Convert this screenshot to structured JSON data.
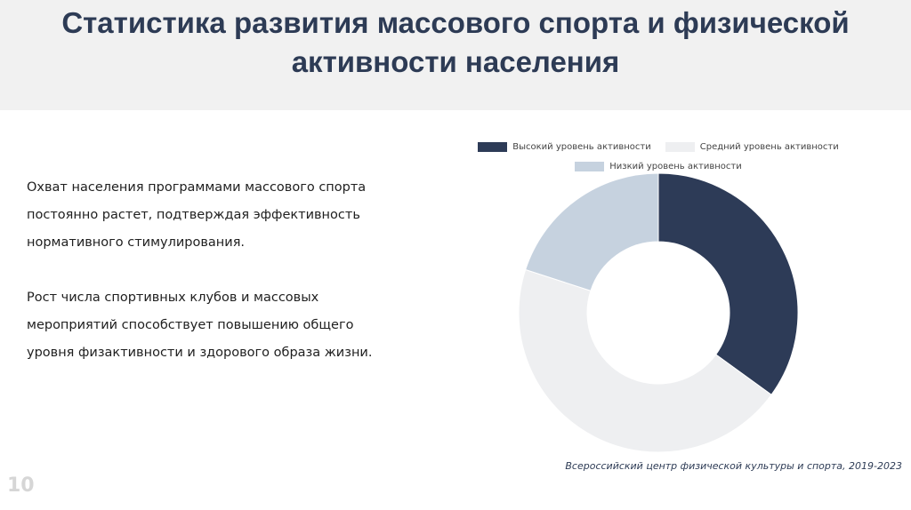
{
  "slide": {
    "title_line1": "Статистика развития массового спорта и физической",
    "title_line2": "активности населения",
    "paragraph1": "Охват населения программами массового спорта постоянно растет, подтверждая эффективность нормативного стимулирования.",
    "paragraph2": "Рост числа спортивных клубов и массовых мероприятий способствует повышению общего уровня физактивности и здорового образа жизни.",
    "source": "Всероссийский центр физической культуры и спорта, 2019-2023",
    "page_number": "10"
  },
  "chart_data": {
    "type": "pie",
    "donut": true,
    "title": "",
    "legend_position": "top",
    "categories": [
      "Высокий уровень активности",
      "Средний уровень активности",
      "Низкий уровень активности"
    ],
    "values": [
      35,
      45,
      20
    ],
    "colors": [
      "#2d3b57",
      "#eeeff1",
      "#c6d2df"
    ]
  }
}
